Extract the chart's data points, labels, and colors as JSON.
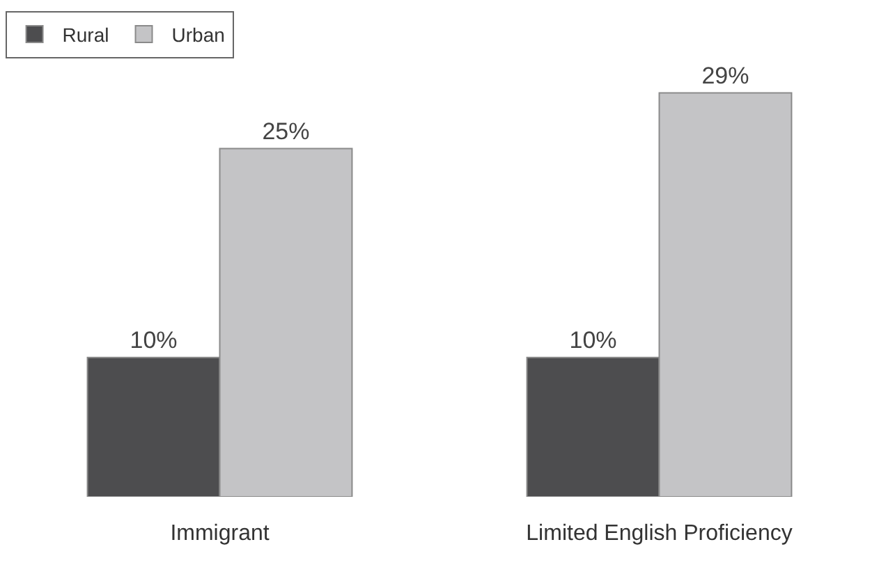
{
  "chart_data": {
    "type": "bar",
    "categories": [
      "Immigrant",
      "Limited English Proficiency"
    ],
    "series": [
      {
        "name": "Rural",
        "color": "#4d4d4f",
        "values": [
          10,
          10
        ],
        "value_labels": [
          "10%",
          "10%"
        ]
      },
      {
        "name": "Urban",
        "color": "#c4c4c6",
        "values": [
          25,
          29
        ],
        "value_labels": [
          "25%",
          "29%"
        ]
      }
    ],
    "legend": "top left"
  }
}
